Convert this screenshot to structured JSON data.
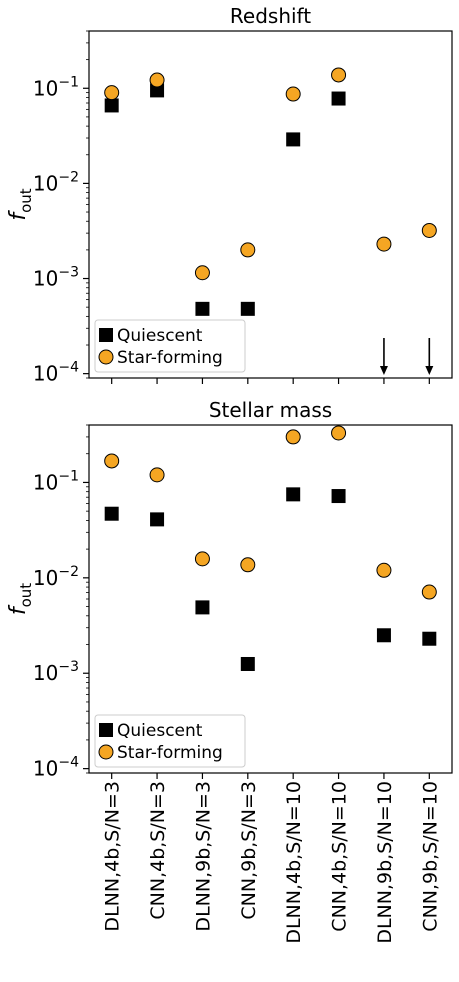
{
  "chart_data": [
    {
      "type": "scatter",
      "title": "Redshift",
      "ylabel_base": "f",
      "ylabel_sub": "out",
      "yscale": "log",
      "ylim": [
        9e-05,
        0.4
      ],
      "yticks": [
        {
          "value": 0.0001,
          "base": "10",
          "exp": "−4"
        },
        {
          "value": 0.001,
          "base": "10",
          "exp": "−3"
        },
        {
          "value": 0.01,
          "base": "10",
          "exp": "−2"
        },
        {
          "value": 0.1,
          "base": "10",
          "exp": "−1"
        }
      ],
      "categories": [
        "DLNN,4b,S/N=3",
        "CNN,4b,S/N=3",
        "DLNN,9b,S/N=3",
        "CNN,9b,S/N=3",
        "DLNN,4b,S/N=10",
        "CNN,4b,S/N=10",
        "DLNN,9b,S/N=10",
        "CNN,9b,S/N=10"
      ],
      "series": [
        {
          "name": "Quiescent",
          "marker": "square",
          "color": "#000000",
          "values": [
            0.066,
            0.095,
            0.00048,
            0.00048,
            0.029,
            0.078,
            null,
            null
          ],
          "upper_limits": [
            false,
            false,
            false,
            false,
            false,
            false,
            true,
            true
          ]
        },
        {
          "name": "Star-forming",
          "marker": "circle",
          "color": "#f5a623",
          "values": [
            0.09,
            0.122,
            0.00115,
            0.002,
            0.087,
            0.138,
            0.0023,
            0.0032
          ]
        }
      ],
      "legend_position": "lower-left"
    },
    {
      "type": "scatter",
      "title": "Stellar mass",
      "ylabel_base": "f",
      "ylabel_sub": "out",
      "yscale": "log",
      "ylim": [
        9e-05,
        0.4
      ],
      "yticks": [
        {
          "value": 0.0001,
          "base": "10",
          "exp": "−4"
        },
        {
          "value": 0.001,
          "base": "10",
          "exp": "−3"
        },
        {
          "value": 0.01,
          "base": "10",
          "exp": "−2"
        },
        {
          "value": 0.1,
          "base": "10",
          "exp": "−1"
        }
      ],
      "categories": [
        "DLNN,4b,S/N=3",
        "CNN,4b,S/N=3",
        "DLNN,9b,S/N=3",
        "CNN,9b,S/N=3",
        "DLNN,4b,S/N=10",
        "CNN,4b,S/N=10",
        "DLNN,9b,S/N=10",
        "CNN,9b,S/N=10"
      ],
      "series": [
        {
          "name": "Quiescent",
          "marker": "square",
          "color": "#000000",
          "values": [
            0.047,
            0.041,
            0.0049,
            0.00125,
            0.075,
            0.072,
            0.0025,
            0.0023
          ]
        },
        {
          "name": "Star-forming",
          "marker": "circle",
          "color": "#f5a623",
          "values": [
            0.168,
            0.12,
            0.0158,
            0.0137,
            0.3,
            0.33,
            0.012,
            0.0071
          ]
        }
      ],
      "legend_position": "lower-left"
    }
  ]
}
